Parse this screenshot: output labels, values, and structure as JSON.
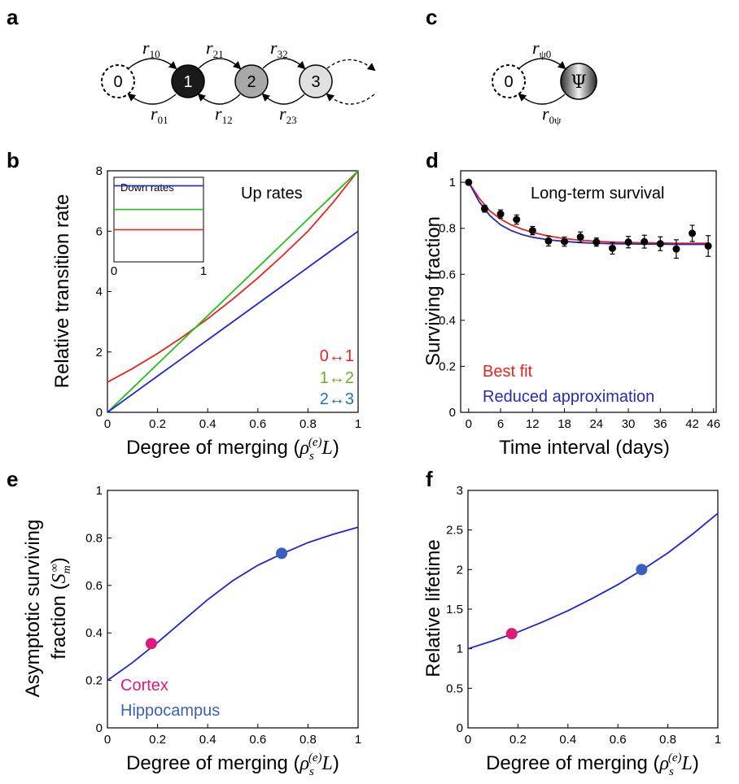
{
  "panels": {
    "a": {
      "label": "a",
      "states": [
        "0",
        "1",
        "2",
        "3"
      ],
      "rates_up": [
        {
          "main": "r",
          "sub": "10"
        },
        {
          "main": "r",
          "sub": "21"
        },
        {
          "main": "r",
          "sub": "32"
        }
      ],
      "rates_down": [
        {
          "main": "r",
          "sub": "01"
        },
        {
          "main": "r",
          "sub": "12"
        },
        {
          "main": "r",
          "sub": "23"
        }
      ],
      "colors": {
        "state0": "#ffffff",
        "state1": "#1a1a1a",
        "state2": "#a8a8a8",
        "state3": "#e0e0e0"
      }
    },
    "c": {
      "label": "c",
      "states": [
        "0",
        "Ψ"
      ],
      "rate_up": {
        "main": "r",
        "sub": "ψ0"
      },
      "rate_down": {
        "main": "r",
        "sub": "0ψ"
      }
    },
    "b": {
      "label": "b"
    },
    "d": {
      "label": "d"
    },
    "e": {
      "label": "e"
    },
    "f": {
      "label": "f"
    }
  },
  "chart_data": [
    {
      "id": "b",
      "type": "line",
      "xlabel": "Degree of merging",
      "xlabel_sym": {
        "rho": "ρ",
        "sub": "s",
        "sup": "(e)",
        "tail": "L"
      },
      "ylabel": "Relative transition rate",
      "xlim": [
        0,
        1
      ],
      "ylim": [
        0,
        8
      ],
      "xticks": [
        "0",
        "0.2",
        "0.4",
        "0.6",
        "0.8",
        "1"
      ],
      "yticks": [
        "0",
        "2",
        "4",
        "6",
        "8"
      ],
      "annotation": "Up rates",
      "series": [
        {
          "name": "0↔1",
          "color": "#e8231f",
          "x": [
            0,
            0.1,
            0.2,
            0.3,
            0.4,
            0.5,
            0.6,
            0.7,
            0.8,
            0.9,
            1.0
          ],
          "y": [
            1.0,
            1.45,
            1.95,
            2.5,
            3.1,
            3.75,
            4.45,
            5.2,
            6.0,
            6.95,
            8.0
          ]
        },
        {
          "name": "1↔2",
          "color": "#22c01a",
          "x": [
            0,
            0.1,
            0.2,
            0.3,
            0.4,
            0.5,
            0.6,
            0.7,
            0.8,
            0.9,
            1.0
          ],
          "y": [
            0,
            0.8,
            1.6,
            2.4,
            3.2,
            4.0,
            4.8,
            5.6,
            6.4,
            7.2,
            8.0
          ]
        },
        {
          "name": "2↔3",
          "color": "#1f23d8",
          "x": [
            0,
            0.1,
            0.2,
            0.3,
            0.4,
            0.5,
            0.6,
            0.7,
            0.8,
            0.9,
            1.0
          ],
          "y": [
            0,
            0.6,
            1.2,
            1.8,
            2.4,
            3.0,
            3.6,
            4.2,
            4.8,
            5.4,
            6.0
          ]
        }
      ],
      "legend_colors": [
        "#e8231f",
        "#6ab023",
        "#1f6fc8"
      ],
      "inset": {
        "title": "Down rates",
        "xticks": [
          "0",
          "1"
        ],
        "ylim": [
          0,
          1
        ],
        "lines": [
          {
            "color": "#1f23d8",
            "y": 0.9
          },
          {
            "color": "#22c01a",
            "y": 0.62
          },
          {
            "color": "#e8231f",
            "y": 0.38
          }
        ]
      }
    },
    {
      "id": "d",
      "type": "scatter",
      "xlabel": "Time interval (days)",
      "ylabel": "Surviving fraction",
      "xlim": [
        -1.5,
        46.5
      ],
      "ylim": [
        0,
        1.05
      ],
      "xticks": [
        "0",
        "6",
        "12",
        "18",
        "24",
        "30",
        "36",
        "42",
        "46"
      ],
      "xtick_values": [
        0,
        6,
        12,
        18,
        24,
        30,
        36,
        42,
        46
      ],
      "yticks": [
        "0",
        "0.2",
        "0.4",
        "0.6",
        "0.8",
        "1"
      ],
      "annotation": "Long-term survival",
      "points": {
        "x": [
          0,
          3,
          6,
          9,
          12,
          15,
          18,
          21,
          24,
          27,
          30,
          33,
          36,
          39,
          42,
          45
        ],
        "y": [
          1.0,
          0.885,
          0.862,
          0.838,
          0.79,
          0.745,
          0.742,
          0.762,
          0.74,
          0.713,
          0.74,
          0.742,
          0.733,
          0.71,
          0.778,
          0.723
        ],
        "err": [
          0.0,
          0.015,
          0.018,
          0.02,
          0.018,
          0.022,
          0.02,
          0.022,
          0.018,
          0.025,
          0.025,
          0.028,
          0.03,
          0.04,
          0.035,
          0.045
        ]
      },
      "series": [
        {
          "name": "Best fit",
          "color": "#e8231f",
          "x": [
            0,
            2,
            4,
            6,
            8,
            10,
            12,
            15,
            18,
            21,
            24,
            27,
            30,
            33,
            36,
            39,
            42,
            45
          ],
          "y": [
            1.0,
            0.93,
            0.875,
            0.84,
            0.815,
            0.797,
            0.782,
            0.766,
            0.755,
            0.748,
            0.743,
            0.74,
            0.738,
            0.737,
            0.736,
            0.735,
            0.735,
            0.735
          ]
        },
        {
          "name": "Reduced approximation",
          "color": "#2a2ab0",
          "x": [
            0,
            2,
            4,
            6,
            8,
            10,
            12,
            15,
            18,
            21,
            24,
            27,
            30,
            33,
            36,
            39,
            42,
            45
          ],
          "y": [
            1.0,
            0.915,
            0.855,
            0.815,
            0.79,
            0.773,
            0.761,
            0.75,
            0.743,
            0.738,
            0.735,
            0.733,
            0.732,
            0.731,
            0.731,
            0.73,
            0.73,
            0.73
          ]
        }
      ]
    },
    {
      "id": "e",
      "type": "line",
      "xlabel": "Degree of merging",
      "xlabel_sym": {
        "rho": "ρ",
        "sub": "s",
        "sup": "(e)",
        "tail": "L"
      },
      "ylabel": "Asymptotic surviving",
      "ylabel2": "fraction",
      "ylabel_sym": {
        "main": "S",
        "sub": "m",
        "sup": "∞"
      },
      "xlim": [
        0,
        1
      ],
      "ylim": [
        0,
        1
      ],
      "xticks": [
        "0",
        "0.2",
        "0.4",
        "0.6",
        "0.8",
        "1"
      ],
      "yticks": [
        "0",
        "0.2",
        "0.4",
        "0.6",
        "0.8",
        "1"
      ],
      "series": [
        {
          "name": "curve",
          "color": "#1f23d8",
          "x": [
            0,
            0.1,
            0.2,
            0.3,
            0.4,
            0.5,
            0.6,
            0.7,
            0.8,
            0.9,
            1.0
          ],
          "y": [
            0.2,
            0.275,
            0.36,
            0.45,
            0.54,
            0.62,
            0.685,
            0.735,
            0.78,
            0.815,
            0.845
          ]
        }
      ],
      "markers": [
        {
          "label": "Cortex",
          "x": 0.175,
          "y": 0.355,
          "color": "#e0197d"
        },
        {
          "label": "Hippocampus",
          "x": 0.695,
          "y": 0.735,
          "color": "#3b5fc0"
        }
      ]
    },
    {
      "id": "f",
      "type": "line",
      "xlabel": "Degree of merging",
      "xlabel_sym": {
        "rho": "ρ",
        "sub": "s",
        "sup": "(e)",
        "tail": "L"
      },
      "ylabel": "Relative lifetime",
      "xlim": [
        0,
        1
      ],
      "ylim": [
        0,
        3
      ],
      "xticks": [
        "0",
        "0.2",
        "0.4",
        "0.6",
        "0.8",
        "1"
      ],
      "yticks": [
        "0",
        "0.5",
        "1",
        "1.5",
        "2",
        "2.5",
        "3"
      ],
      "series": [
        {
          "name": "curve",
          "color": "#1f23d8",
          "x": [
            0,
            0.1,
            0.2,
            0.3,
            0.4,
            0.5,
            0.6,
            0.7,
            0.8,
            0.9,
            1.0
          ],
          "y": [
            1.0,
            1.1,
            1.21,
            1.34,
            1.48,
            1.64,
            1.81,
            2.0,
            2.21,
            2.45,
            2.71
          ]
        }
      ],
      "markers": [
        {
          "label": "",
          "x": 0.175,
          "y": 1.19,
          "color": "#e0197d"
        },
        {
          "label": "",
          "x": 0.695,
          "y": 2.0,
          "color": "#3b5fc0"
        }
      ]
    }
  ]
}
